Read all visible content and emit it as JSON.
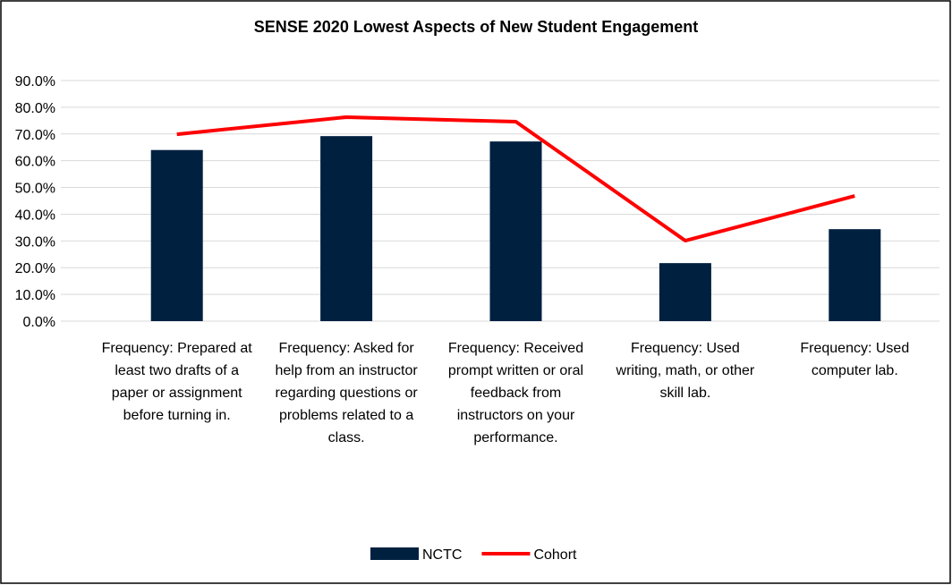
{
  "chart_data": {
    "type": "bar_line",
    "title": "SENSE 2020 Lowest Aspects of New Student Engagement",
    "categories": [
      "Frequency: Prepared at least two drafts of a paper or assignment before turning in.",
      "Frequency: Asked for help from an instructor regarding questions or problems related to a class.",
      "Frequency: Received prompt written or oral feedback from instructors on your performance.",
      "Frequency: Used writing, math, or other skill lab.",
      "Frequency: Used computer lab."
    ],
    "series": [
      {
        "name": "NCTC",
        "type": "bar",
        "color": "#002040",
        "values": [
          64.0,
          69.2,
          67.2,
          21.7,
          34.4
        ]
      },
      {
        "name": "Cohort",
        "type": "line",
        "color": "#ff0000",
        "values": [
          69.9,
          76.3,
          74.6,
          30.1,
          46.8
        ]
      }
    ],
    "ylim": [
      0,
      90
    ],
    "yticks": [
      {
        "value": 0,
        "label": "0.0%"
      },
      {
        "value": 10,
        "label": "10.0%"
      },
      {
        "value": 20,
        "label": "20.0%"
      },
      {
        "value": 30,
        "label": "30.0%"
      },
      {
        "value": 40,
        "label": "40.0%"
      },
      {
        "value": 50,
        "label": "50.0%"
      },
      {
        "value": 60,
        "label": "60.0%"
      },
      {
        "value": 70,
        "label": "70.0%"
      },
      {
        "value": 80,
        "label": "80.0%"
      },
      {
        "value": 90,
        "label": "90.0%"
      }
    ],
    "grid": true,
    "legend": "bottom"
  }
}
